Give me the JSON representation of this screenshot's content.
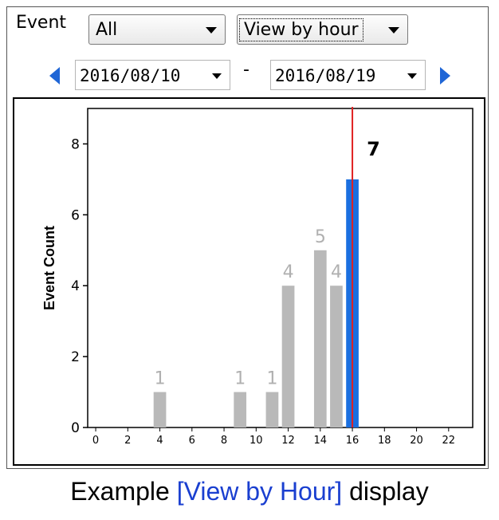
{
  "controls": {
    "event_label": "Event",
    "event_filter": "All",
    "view_mode": "View by hour",
    "date_from": "2016/08/10",
    "date_separator": "-",
    "date_to": "2016/08/19"
  },
  "caption": {
    "prefix": "Example ",
    "highlight": "[View by Hour]",
    "suffix": " display"
  },
  "colors": {
    "bar_default": "#b9b9b9",
    "bar_selected": "#1a6fe0",
    "marker_line": "#e02020",
    "accent": "#1f66d6"
  },
  "chart_data": {
    "type": "bar",
    "ylabel": "Event Count",
    "xlabel": "",
    "xlim": [
      -0.5,
      23.5
    ],
    "ylim": [
      0,
      9
    ],
    "x_ticks": [
      0,
      2,
      4,
      6,
      8,
      10,
      12,
      14,
      16,
      18,
      20,
      22
    ],
    "y_ticks": [
      0,
      2,
      4,
      6,
      8
    ],
    "bars": [
      {
        "hour": 4,
        "value": 1,
        "label": "1"
      },
      {
        "hour": 9,
        "value": 1,
        "label": "1"
      },
      {
        "hour": 11,
        "value": 1,
        "label": "1"
      },
      {
        "hour": 12,
        "value": 4,
        "label": "4"
      },
      {
        "hour": 14,
        "value": 5,
        "label": "5"
      },
      {
        "hour": 15,
        "value": 4,
        "label": "4"
      },
      {
        "hour": 16,
        "value": 7,
        "label": "7",
        "selected": true
      }
    ],
    "marker_hour": 16,
    "grid": false,
    "legend": "none"
  }
}
